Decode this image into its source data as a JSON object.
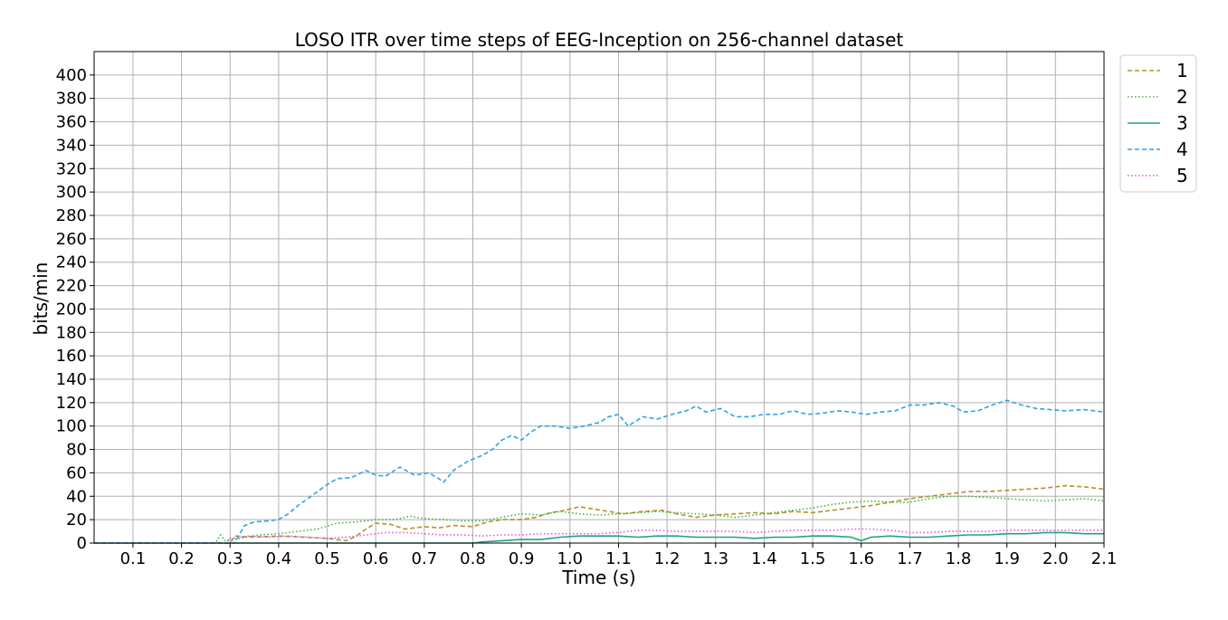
{
  "chart_data": {
    "type": "line",
    "title": "LOSO ITR over time steps of EEG-Inception on 256-channel dataset",
    "xlabel": "Time (s)",
    "ylabel": "bits/min",
    "xlim": [
      0.02,
      2.1
    ],
    "ylim": [
      0,
      420
    ],
    "xticks": [
      0.1,
      0.2,
      0.3,
      0.4,
      0.5,
      0.6,
      0.7,
      0.8,
      0.9,
      1.0,
      1.1,
      1.2,
      1.3,
      1.4,
      1.5,
      1.6,
      1.7,
      1.8,
      1.9,
      2.0,
      2.1
    ],
    "xtick_labels": [
      "0.1",
      "0.2",
      "0.3",
      "0.4",
      "0.5",
      "0.6",
      "0.7",
      "0.8",
      "0.9",
      "1.0",
      "1.1",
      "1.2",
      "1.3",
      "1.4",
      "1.5",
      "1.6",
      "1.7",
      "1.8",
      "1.9",
      "2.0",
      "2.1"
    ],
    "yticks": [
      0,
      20,
      40,
      60,
      80,
      100,
      120,
      140,
      160,
      180,
      200,
      220,
      240,
      260,
      280,
      300,
      320,
      340,
      360,
      380,
      400
    ],
    "ytick_labels": [
      "0",
      "20",
      "40",
      "60",
      "80",
      "100",
      "120",
      "140",
      "160",
      "180",
      "200",
      "220",
      "240",
      "260",
      "280",
      "300",
      "320",
      "340",
      "360",
      "380",
      "400"
    ],
    "grid": true,
    "legend_position": "outside-top-right",
    "series": [
      {
        "name": "1",
        "color": "#b8902c",
        "style": "dashed",
        "points": [
          [
            0.02,
            0
          ],
          [
            0.3,
            0
          ],
          [
            0.31,
            6
          ],
          [
            0.35,
            5
          ],
          [
            0.4,
            6
          ],
          [
            0.45,
            5
          ],
          [
            0.5,
            4
          ],
          [
            0.54,
            2
          ],
          [
            0.56,
            6
          ],
          [
            0.58,
            12
          ],
          [
            0.6,
            17
          ],
          [
            0.63,
            16
          ],
          [
            0.66,
            12
          ],
          [
            0.7,
            14
          ],
          [
            0.73,
            13
          ],
          [
            0.76,
            15
          ],
          [
            0.8,
            14
          ],
          [
            0.83,
            18
          ],
          [
            0.86,
            20
          ],
          [
            0.9,
            20
          ],
          [
            0.93,
            22
          ],
          [
            0.96,
            26
          ],
          [
            0.99,
            28
          ],
          [
            1.02,
            31
          ],
          [
            1.05,
            29
          ],
          [
            1.08,
            27
          ],
          [
            1.11,
            25
          ],
          [
            1.15,
            27
          ],
          [
            1.19,
            28
          ],
          [
            1.22,
            25
          ],
          [
            1.26,
            22
          ],
          [
            1.3,
            24
          ],
          [
            1.34,
            25
          ],
          [
            1.38,
            26
          ],
          [
            1.42,
            25
          ],
          [
            1.46,
            27
          ],
          [
            1.5,
            26
          ],
          [
            1.54,
            28
          ],
          [
            1.58,
            30
          ],
          [
            1.62,
            32
          ],
          [
            1.66,
            35
          ],
          [
            1.7,
            38
          ],
          [
            1.74,
            40
          ],
          [
            1.78,
            42
          ],
          [
            1.82,
            44
          ],
          [
            1.86,
            44
          ],
          [
            1.9,
            45
          ],
          [
            1.94,
            46
          ],
          [
            1.98,
            47
          ],
          [
            2.02,
            49
          ],
          [
            2.06,
            48
          ],
          [
            2.1,
            46
          ]
        ]
      },
      {
        "name": "2",
        "color": "#3cb73c",
        "style": "dotted",
        "points": [
          [
            0.02,
            0
          ],
          [
            0.27,
            0
          ],
          [
            0.28,
            7
          ],
          [
            0.29,
            2
          ],
          [
            0.32,
            4
          ],
          [
            0.36,
            7
          ],
          [
            0.4,
            8
          ],
          [
            0.44,
            10
          ],
          [
            0.48,
            12
          ],
          [
            0.52,
            17
          ],
          [
            0.56,
            18
          ],
          [
            0.6,
            20
          ],
          [
            0.64,
            20
          ],
          [
            0.67,
            23
          ],
          [
            0.7,
            21
          ],
          [
            0.74,
            20
          ],
          [
            0.78,
            19
          ],
          [
            0.82,
            19
          ],
          [
            0.86,
            22
          ],
          [
            0.9,
            25
          ],
          [
            0.94,
            24
          ],
          [
            0.98,
            27
          ],
          [
            1.02,
            25
          ],
          [
            1.06,
            24
          ],
          [
            1.1,
            25
          ],
          [
            1.14,
            26
          ],
          [
            1.18,
            27
          ],
          [
            1.22,
            26
          ],
          [
            1.26,
            25
          ],
          [
            1.3,
            24
          ],
          [
            1.34,
            22
          ],
          [
            1.38,
            24
          ],
          [
            1.42,
            26
          ],
          [
            1.46,
            28
          ],
          [
            1.5,
            30
          ],
          [
            1.54,
            33
          ],
          [
            1.58,
            35
          ],
          [
            1.62,
            36
          ],
          [
            1.66,
            35
          ],
          [
            1.7,
            35
          ],
          [
            1.74,
            38
          ],
          [
            1.78,
            40
          ],
          [
            1.82,
            40
          ],
          [
            1.86,
            39
          ],
          [
            1.9,
            38
          ],
          [
            1.94,
            37
          ],
          [
            1.98,
            36
          ],
          [
            2.02,
            37
          ],
          [
            2.06,
            38
          ],
          [
            2.1,
            36
          ]
        ]
      },
      {
        "name": "3",
        "color": "#1fa28a",
        "style": "solid",
        "points": [
          [
            0.02,
            0
          ],
          [
            0.8,
            0
          ],
          [
            0.82,
            1
          ],
          [
            0.86,
            2
          ],
          [
            0.9,
            3
          ],
          [
            0.94,
            3
          ],
          [
            0.98,
            5
          ],
          [
            1.02,
            6
          ],
          [
            1.06,
            6
          ],
          [
            1.1,
            6
          ],
          [
            1.14,
            5
          ],
          [
            1.18,
            6
          ],
          [
            1.22,
            6
          ],
          [
            1.26,
            5
          ],
          [
            1.3,
            5
          ],
          [
            1.34,
            5
          ],
          [
            1.38,
            4
          ],
          [
            1.42,
            5
          ],
          [
            1.46,
            5
          ],
          [
            1.5,
            6
          ],
          [
            1.54,
            6
          ],
          [
            1.58,
            5
          ],
          [
            1.6,
            2
          ],
          [
            1.62,
            5
          ],
          [
            1.66,
            6
          ],
          [
            1.7,
            5
          ],
          [
            1.74,
            5
          ],
          [
            1.78,
            6
          ],
          [
            1.82,
            7
          ],
          [
            1.86,
            7
          ],
          [
            1.9,
            8
          ],
          [
            1.94,
            8
          ],
          [
            1.98,
            9
          ],
          [
            2.02,
            9
          ],
          [
            2.06,
            8
          ],
          [
            2.1,
            8
          ]
        ]
      },
      {
        "name": "4",
        "color": "#2ea4e6",
        "style": "dashed",
        "points": [
          [
            0.02,
            0
          ],
          [
            0.31,
            0
          ],
          [
            0.32,
            8
          ],
          [
            0.33,
            15
          ],
          [
            0.35,
            18
          ],
          [
            0.38,
            19
          ],
          [
            0.4,
            20
          ],
          [
            0.42,
            25
          ],
          [
            0.44,
            32
          ],
          [
            0.46,
            38
          ],
          [
            0.48,
            44
          ],
          [
            0.5,
            50
          ],
          [
            0.52,
            55
          ],
          [
            0.55,
            56
          ],
          [
            0.58,
            62
          ],
          [
            0.6,
            58
          ],
          [
            0.62,
            57
          ],
          [
            0.65,
            65
          ],
          [
            0.68,
            58
          ],
          [
            0.71,
            60
          ],
          [
            0.73,
            55
          ],
          [
            0.74,
            52
          ],
          [
            0.76,
            62
          ],
          [
            0.79,
            70
          ],
          [
            0.82,
            75
          ],
          [
            0.84,
            80
          ],
          [
            0.86,
            88
          ],
          [
            0.88,
            92
          ],
          [
            0.9,
            88
          ],
          [
            0.92,
            95
          ],
          [
            0.94,
            100
          ],
          [
            0.97,
            100
          ],
          [
            1.0,
            98
          ],
          [
            1.03,
            100
          ],
          [
            1.06,
            103
          ],
          [
            1.08,
            108
          ],
          [
            1.1,
            110
          ],
          [
            1.12,
            100
          ],
          [
            1.15,
            108
          ],
          [
            1.18,
            106
          ],
          [
            1.21,
            110
          ],
          [
            1.24,
            113
          ],
          [
            1.26,
            117
          ],
          [
            1.28,
            112
          ],
          [
            1.31,
            115
          ],
          [
            1.34,
            108
          ],
          [
            1.37,
            108
          ],
          [
            1.4,
            110
          ],
          [
            1.43,
            110
          ],
          [
            1.46,
            113
          ],
          [
            1.49,
            110
          ],
          [
            1.52,
            111
          ],
          [
            1.55,
            113
          ],
          [
            1.58,
            112
          ],
          [
            1.61,
            110
          ],
          [
            1.64,
            112
          ],
          [
            1.67,
            113
          ],
          [
            1.7,
            118
          ],
          [
            1.73,
            118
          ],
          [
            1.76,
            120
          ],
          [
            1.79,
            117
          ],
          [
            1.81,
            112
          ],
          [
            1.84,
            113
          ],
          [
            1.87,
            118
          ],
          [
            1.9,
            122
          ],
          [
            1.93,
            118
          ],
          [
            1.96,
            115
          ],
          [
            1.99,
            114
          ],
          [
            2.02,
            113
          ],
          [
            2.06,
            114
          ],
          [
            2.1,
            112
          ]
        ]
      },
      {
        "name": "5",
        "color": "#e454e0",
        "style": "dotted",
        "points": [
          [
            0.02,
            0
          ],
          [
            0.29,
            0
          ],
          [
            0.3,
            4
          ],
          [
            0.34,
            6
          ],
          [
            0.38,
            5
          ],
          [
            0.42,
            6
          ],
          [
            0.46,
            5
          ],
          [
            0.5,
            4
          ],
          [
            0.54,
            5
          ],
          [
            0.58,
            7
          ],
          [
            0.62,
            9
          ],
          [
            0.66,
            9
          ],
          [
            0.7,
            8
          ],
          [
            0.74,
            7
          ],
          [
            0.78,
            7
          ],
          [
            0.82,
            6
          ],
          [
            0.86,
            7
          ],
          [
            0.9,
            7
          ],
          [
            0.94,
            8
          ],
          [
            0.98,
            8
          ],
          [
            1.02,
            8
          ],
          [
            1.06,
            8
          ],
          [
            1.1,
            9
          ],
          [
            1.14,
            11
          ],
          [
            1.18,
            11
          ],
          [
            1.22,
            10
          ],
          [
            1.26,
            10
          ],
          [
            1.3,
            10
          ],
          [
            1.34,
            10
          ],
          [
            1.38,
            9
          ],
          [
            1.42,
            10
          ],
          [
            1.46,
            11
          ],
          [
            1.5,
            11
          ],
          [
            1.54,
            11
          ],
          [
            1.58,
            12
          ],
          [
            1.62,
            12
          ],
          [
            1.66,
            11
          ],
          [
            1.7,
            9
          ],
          [
            1.74,
            9
          ],
          [
            1.78,
            10
          ],
          [
            1.82,
            10
          ],
          [
            1.86,
            10
          ],
          [
            1.9,
            11
          ],
          [
            1.94,
            11
          ],
          [
            1.98,
            11
          ],
          [
            2.02,
            11
          ],
          [
            2.06,
            11
          ],
          [
            2.1,
            11
          ]
        ]
      }
    ]
  }
}
